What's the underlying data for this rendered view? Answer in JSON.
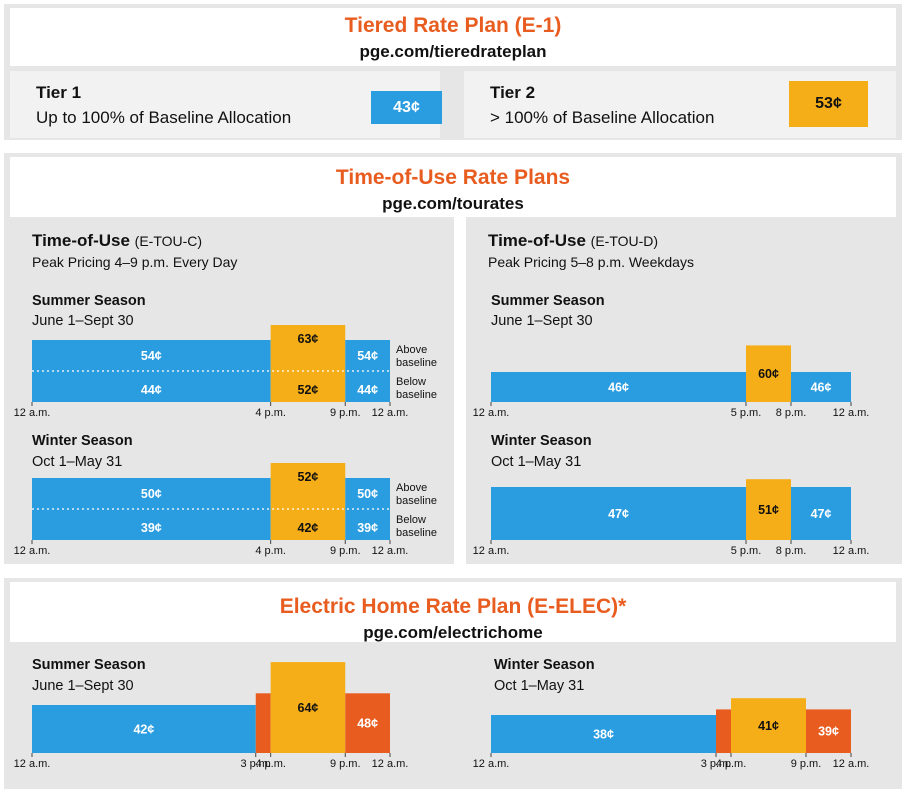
{
  "colors": {
    "blue": "#2a9ce0",
    "yellow": "#f5ae18",
    "orange": "#e85d1f",
    "panel": "#e6e6e6"
  },
  "tiered": {
    "title": "Tiered Rate Plan (E-1)",
    "url": "pge.com/tieredrateplan",
    "tiers": [
      {
        "name": "Tier 1",
        "desc": "Up to 100% of Baseline Allocation",
        "price": "43¢",
        "color": "blue"
      },
      {
        "name": "Tier 2",
        "desc": "> 100% of Baseline Allocation",
        "price": "53¢",
        "color": "yellow"
      }
    ]
  },
  "tou": {
    "title": "Time-of-Use Rate Plans",
    "url": "pge.com/tourates",
    "plans": [
      {
        "name": "Time-of-Use",
        "code": "(E-TOU-C)",
        "sub": "Peak Pricing 4–9 p.m. Every Day"
      },
      {
        "name": "Time-of-Use",
        "code": "(E-TOU-D)",
        "sub": "Peak Pricing 5–8 p.m. Weekdays"
      }
    ]
  },
  "elec": {
    "title": "Electric Home Rate Plan (E-ELEC)*",
    "url": "pge.com/electrichome"
  },
  "chart_data": [
    {
      "type": "bar",
      "id": "c-summer",
      "season": "Summer Season",
      "dates": "June 1–Sept 30",
      "x_unit": "hour",
      "xlim": [
        0,
        24
      ],
      "ticks": [
        {
          "h": 0,
          "label": "12 a.m."
        },
        {
          "h": 16,
          "label": "4 p.m."
        },
        {
          "h": 21,
          "label": "9 p.m."
        },
        {
          "h": 24,
          "label": "12 a.m."
        }
      ],
      "segments": [
        {
          "from": 0,
          "to": 16,
          "color": "blue",
          "above": "54¢",
          "below": "44¢"
        },
        {
          "from": 16,
          "to": 21,
          "color": "yellow",
          "above": "63¢",
          "below": "52¢",
          "peak": true
        },
        {
          "from": 21,
          "to": 24,
          "color": "blue",
          "above": "54¢",
          "below": "44¢"
        }
      ],
      "legend": {
        "above": "Above baseline",
        "below": "Below baseline"
      }
    },
    {
      "type": "bar",
      "id": "d-summer",
      "season": "Summer Season",
      "dates": "June 1–Sept 30",
      "x_unit": "hour",
      "xlim": [
        0,
        24
      ],
      "ticks": [
        {
          "h": 0,
          "label": "12 a.m."
        },
        {
          "h": 17,
          "label": "5 p.m."
        },
        {
          "h": 20,
          "label": "8 p.m."
        },
        {
          "h": 24,
          "label": "12 a.m."
        }
      ],
      "segments": [
        {
          "from": 0,
          "to": 17,
          "color": "blue",
          "value": 46,
          "label": "46¢"
        },
        {
          "from": 17,
          "to": 20,
          "color": "yellow",
          "value": 60,
          "label": "60¢"
        },
        {
          "from": 20,
          "to": 24,
          "color": "blue",
          "value": 46,
          "label": "46¢"
        }
      ]
    },
    {
      "type": "bar",
      "id": "c-winter",
      "season": "Winter Season",
      "dates": "Oct 1–May 31",
      "x_unit": "hour",
      "xlim": [
        0,
        24
      ],
      "ticks": [
        {
          "h": 0,
          "label": "12 a.m."
        },
        {
          "h": 16,
          "label": "4 p.m."
        },
        {
          "h": 21,
          "label": "9 p.m."
        },
        {
          "h": 24,
          "label": "12 a.m."
        }
      ],
      "segments": [
        {
          "from": 0,
          "to": 16,
          "color": "blue",
          "above": "50¢",
          "below": "39¢"
        },
        {
          "from": 16,
          "to": 21,
          "color": "yellow",
          "above": "52¢",
          "below": "42¢",
          "peak": true
        },
        {
          "from": 21,
          "to": 24,
          "color": "blue",
          "above": "50¢",
          "below": "39¢"
        }
      ],
      "legend": {
        "above": "Above baseline",
        "below": "Below baseline"
      }
    },
    {
      "type": "bar",
      "id": "d-winter",
      "season": "Winter Season",
      "dates": "Oct 1–May 31",
      "x_unit": "hour",
      "xlim": [
        0,
        24
      ],
      "ticks": [
        {
          "h": 0,
          "label": "12 a.m."
        },
        {
          "h": 17,
          "label": "5 p.m."
        },
        {
          "h": 20,
          "label": "8 p.m."
        },
        {
          "h": 24,
          "label": "12 a.m."
        }
      ],
      "segments": [
        {
          "from": 0,
          "to": 17,
          "color": "blue",
          "value": 47,
          "label": "47¢"
        },
        {
          "from": 17,
          "to": 20,
          "color": "yellow",
          "value": 51,
          "label": "51¢"
        },
        {
          "from": 20,
          "to": 24,
          "color": "blue",
          "value": 47,
          "label": "47¢"
        }
      ]
    },
    {
      "type": "bar",
      "id": "e-summer",
      "season": "Summer Season",
      "dates": "June 1–Sept 30",
      "x_unit": "hour",
      "xlim": [
        0,
        24
      ],
      "ticks": [
        {
          "h": 0,
          "label": "12 a.m."
        },
        {
          "h": 15,
          "label": "3 p.m."
        },
        {
          "h": 16,
          "label": "4 p.m."
        },
        {
          "h": 21,
          "label": "9 p.m."
        },
        {
          "h": 24,
          "label": "12 a.m."
        }
      ],
      "segments": [
        {
          "from": 0,
          "to": 15,
          "color": "blue",
          "value": 42,
          "label": "42¢"
        },
        {
          "from": 15,
          "to": 16,
          "color": "orange",
          "value": 48,
          "label": ""
        },
        {
          "from": 16,
          "to": 21,
          "color": "yellow",
          "value": 64,
          "label": "64¢"
        },
        {
          "from": 21,
          "to": 24,
          "color": "orange",
          "value": 48,
          "label": "48¢"
        }
      ]
    },
    {
      "type": "bar",
      "id": "e-winter",
      "season": "Winter Season",
      "dates": "Oct 1–May 31",
      "x_unit": "hour",
      "xlim": [
        0,
        24
      ],
      "ticks": [
        {
          "h": 0,
          "label": "12 a.m."
        },
        {
          "h": 15,
          "label": "3 p.m."
        },
        {
          "h": 16,
          "label": "4 p.m."
        },
        {
          "h": 21,
          "label": "9 p.m."
        },
        {
          "h": 24,
          "label": "12 a.m."
        }
      ],
      "segments": [
        {
          "from": 0,
          "to": 15,
          "color": "blue",
          "value": 38,
          "label": "38¢"
        },
        {
          "from": 15,
          "to": 16,
          "color": "orange",
          "value": 39,
          "label": ""
        },
        {
          "from": 16,
          "to": 21,
          "color": "yellow",
          "value": 41,
          "label": "41¢"
        },
        {
          "from": 21,
          "to": 24,
          "color": "orange",
          "value": 39,
          "label": "39¢"
        }
      ]
    }
  ]
}
